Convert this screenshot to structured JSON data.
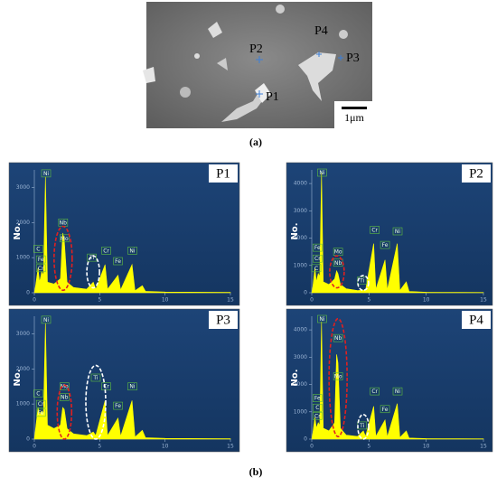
{
  "sem": {
    "points": [
      "P1",
      "P2",
      "P3",
      "P4"
    ],
    "scale_bar": "1μm",
    "caption": "(a)"
  },
  "caption_b": "(b)",
  "chart_data": [
    {
      "type": "area",
      "title": "P1",
      "y_label": "No.",
      "color": "#ffff00",
      "x": [
        0,
        0.1,
        0.28,
        0.4,
        0.57,
        0.7,
        0.85,
        1.0,
        1.5,
        2.0,
        2.17,
        2.29,
        2.5,
        3,
        4,
        4.51,
        4.7,
        5.41,
        5.6,
        6.4,
        6.6,
        7.47,
        7.7,
        8.26,
        8.5,
        10,
        15
      ],
      "values": [
        0,
        200,
        700,
        300,
        600,
        500,
        3300,
        300,
        250,
        400,
        1700,
        1500,
        300,
        150,
        100,
        300,
        100,
        800,
        100,
        500,
        80,
        800,
        60,
        200,
        40,
        20,
        10
      ],
      "xlim": [
        0,
        15
      ],
      "xticks": [
        0,
        5,
        10,
        15
      ],
      "ylim": [
        0,
        3500
      ],
      "yticks": [
        0,
        1000,
        2000,
        3000
      ],
      "annotations": [
        {
          "text": "Ni",
          "x": 0.9,
          "y": 3400
        },
        {
          "text": "C",
          "x": 0.3,
          "y": 1250
        },
        {
          "text": "Fe",
          "x": 0.5,
          "y": 950
        },
        {
          "text": "Cr",
          "x": 0.5,
          "y": 700
        },
        {
          "text": "Nb",
          "x": 2.2,
          "y": 2000
        },
        {
          "text": "Mo",
          "x": 2.3,
          "y": 1550
        },
        {
          "text": "Ti",
          "x": 4.4,
          "y": 1000
        },
        {
          "text": "Cr",
          "x": 5.5,
          "y": 1200
        },
        {
          "text": "Fe",
          "x": 6.4,
          "y": 900
        },
        {
          "text": "Ni",
          "x": 7.5,
          "y": 1200
        }
      ]
    },
    {
      "type": "area",
      "title": "P2",
      "y_label": "No.",
      "color": "#ffff00",
      "x": [
        0,
        0.1,
        0.28,
        0.4,
        0.57,
        0.7,
        0.85,
        1.0,
        1.5,
        2.0,
        2.17,
        2.29,
        2.5,
        3,
        4,
        4.51,
        4.7,
        5.41,
        5.6,
        6.4,
        6.6,
        7.47,
        7.7,
        8.26,
        8.5,
        10,
        15
      ],
      "values": [
        0,
        250,
        900,
        400,
        700,
        600,
        4400,
        400,
        300,
        500,
        800,
        700,
        300,
        150,
        80,
        100,
        80,
        1800,
        120,
        1200,
        100,
        1800,
        80,
        400,
        50,
        20,
        10
      ],
      "xlim": [
        0,
        15
      ],
      "xticks": [
        0,
        5,
        10,
        15
      ],
      "ylim": [
        0,
        4500
      ],
      "yticks": [
        0,
        1000,
        2000,
        3000,
        4000
      ],
      "annotations": [
        {
          "text": "Ni",
          "x": 0.9,
          "y": 4400
        },
        {
          "text": "Fe",
          "x": 0.5,
          "y": 1650
        },
        {
          "text": "Cr",
          "x": 0.5,
          "y": 1250
        },
        {
          "text": "C",
          "x": 0.4,
          "y": 900
        },
        {
          "text": "Mo",
          "x": 2.3,
          "y": 1500
        },
        {
          "text": "Nb",
          "x": 2.3,
          "y": 1100
        },
        {
          "text": "Ti",
          "x": 4.4,
          "y": 450
        },
        {
          "text": "Cr",
          "x": 5.5,
          "y": 2300
        },
        {
          "text": "Fe",
          "x": 6.4,
          "y": 1750
        },
        {
          "text": "Ni",
          "x": 7.5,
          "y": 2250
        }
      ]
    },
    {
      "type": "area",
      "title": "P3",
      "y_label": "No.",
      "color": "#ffff00",
      "x": [
        0,
        0.1,
        0.28,
        0.4,
        0.57,
        0.7,
        0.85,
        1.0,
        1.5,
        2.0,
        2.17,
        2.29,
        2.5,
        3,
        4,
        4.51,
        4.7,
        5.41,
        5.6,
        6.4,
        6.6,
        7.47,
        7.7,
        8.26,
        8.5,
        10,
        15
      ],
      "values": [
        0,
        300,
        900,
        700,
        800,
        700,
        3300,
        400,
        300,
        400,
        900,
        850,
        300,
        150,
        100,
        200,
        100,
        1100,
        100,
        600,
        80,
        1100,
        60,
        250,
        40,
        20,
        10
      ],
      "xlim": [
        0,
        15
      ],
      "xticks": [
        0,
        5,
        10,
        15
      ],
      "ylim": [
        0,
        3500
      ],
      "yticks": [
        0,
        1000,
        2000,
        3000
      ],
      "annotations": [
        {
          "text": "Ni",
          "x": 0.9,
          "y": 3400
        },
        {
          "text": "C",
          "x": 0.3,
          "y": 1300
        },
        {
          "text": "Cr",
          "x": 0.5,
          "y": 1000
        },
        {
          "text": "Fe",
          "x": 0.5,
          "y": 750
        },
        {
          "text": "Mo",
          "x": 2.3,
          "y": 1500
        },
        {
          "text": "Nb",
          "x": 2.3,
          "y": 1200
        },
        {
          "text": "Ti",
          "x": 4.7,
          "y": 1750
        },
        {
          "text": "Cr",
          "x": 5.5,
          "y": 1500
        },
        {
          "text": "Fe",
          "x": 6.4,
          "y": 950
        },
        {
          "text": "Ni",
          "x": 7.5,
          "y": 1500
        }
      ]
    },
    {
      "type": "area",
      "title": "P4",
      "y_label": "No.",
      "color": "#ffff00",
      "x": [
        0,
        0.1,
        0.28,
        0.4,
        0.57,
        0.7,
        0.85,
        1.0,
        1.5,
        2.0,
        2.17,
        2.29,
        2.5,
        3,
        4,
        4.51,
        4.7,
        5.41,
        5.6,
        6.4,
        6.6,
        7.47,
        7.7,
        8.26,
        8.5,
        10,
        15
      ],
      "values": [
        0,
        250,
        800,
        400,
        600,
        500,
        4300,
        400,
        300,
        600,
        3100,
        2800,
        400,
        150,
        100,
        300,
        100,
        1200,
        100,
        700,
        80,
        1300,
        60,
        300,
        40,
        20,
        10
      ],
      "xlim": [
        0,
        15
      ],
      "xticks": [
        0,
        5,
        10,
        15
      ],
      "ylim": [
        0,
        4500
      ],
      "yticks": [
        0,
        1000,
        2000,
        3000,
        4000
      ],
      "annotations": [
        {
          "text": "Ni",
          "x": 0.9,
          "y": 4400
        },
        {
          "text": "Nb",
          "x": 2.3,
          "y": 3700
        },
        {
          "text": "Mo",
          "x": 2.3,
          "y": 2300
        },
        {
          "text": "Fe",
          "x": 0.5,
          "y": 1500
        },
        {
          "text": "C",
          "x": 0.5,
          "y": 1150
        },
        {
          "text": "Cr",
          "x": 0.5,
          "y": 850
        },
        {
          "text": "Ti",
          "x": 4.4,
          "y": 500
        },
        {
          "text": "Cr",
          "x": 5.5,
          "y": 1750
        },
        {
          "text": "Fe",
          "x": 6.4,
          "y": 1100
        },
        {
          "text": "Ni",
          "x": 7.5,
          "y": 1750
        }
      ]
    }
  ]
}
